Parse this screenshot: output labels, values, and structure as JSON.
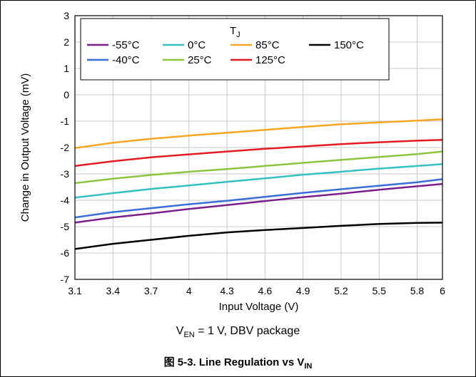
{
  "chart_data": {
    "type": "line",
    "title": "",
    "xlabel": "Input Voltage (V)",
    "ylabel": "Change in Output Voltage (mV)",
    "xlim": [
      3.1,
      6
    ],
    "ylim": [
      -7,
      3
    ],
    "xticks": [
      "3.1",
      "3.4",
      "3.7",
      "4",
      "4.3",
      "4.6",
      "4.9",
      "5.2",
      "5.5",
      "5.8",
      "6"
    ],
    "yticks": [
      "3",
      "2",
      "1",
      "0",
      "-1",
      "-2",
      "-3",
      "-4",
      "-5",
      "-6",
      "-7"
    ],
    "grid": true,
    "legend": {
      "title_main": "T",
      "title_sub": "J",
      "placement": "top-right"
    },
    "x": [
      3.1,
      3.4,
      3.7,
      4.0,
      4.3,
      4.6,
      4.9,
      5.2,
      5.5,
      5.8,
      6.0
    ],
    "series": [
      {
        "name": "-55°C",
        "color": "#7b1f8c",
        "values": [
          -4.85,
          -4.65,
          -4.5,
          -4.33,
          -4.18,
          -4.03,
          -3.88,
          -3.75,
          -3.6,
          -3.47,
          -3.38
        ]
      },
      {
        "name": "-40°C",
        "color": "#3a6fd8",
        "values": [
          -4.65,
          -4.45,
          -4.3,
          -4.15,
          -4.02,
          -3.87,
          -3.72,
          -3.58,
          -3.45,
          -3.32,
          -3.2
        ]
      },
      {
        "name": "0°C",
        "color": "#35c0c4",
        "values": [
          -3.9,
          -3.73,
          -3.57,
          -3.44,
          -3.3,
          -3.17,
          -3.03,
          -2.92,
          -2.8,
          -2.7,
          -2.63
        ]
      },
      {
        "name": "25°C",
        "color": "#8cc63f",
        "values": [
          -3.35,
          -3.18,
          -3.04,
          -2.92,
          -2.82,
          -2.7,
          -2.58,
          -2.47,
          -2.36,
          -2.25,
          -2.15
        ]
      },
      {
        "name": "85°C",
        "color": "#f5a623",
        "values": [
          -2.02,
          -1.82,
          -1.67,
          -1.55,
          -1.44,
          -1.33,
          -1.22,
          -1.12,
          -1.05,
          -0.98,
          -0.93
        ]
      },
      {
        "name": "125°C",
        "color": "#e31b23",
        "values": [
          -2.7,
          -2.52,
          -2.37,
          -2.26,
          -2.15,
          -2.05,
          -1.96,
          -1.87,
          -1.8,
          -1.74,
          -1.71
        ]
      },
      {
        "name": "150°C",
        "color": "#000000",
        "values": [
          -5.85,
          -5.65,
          -5.5,
          -5.35,
          -5.22,
          -5.13,
          -5.05,
          -4.97,
          -4.9,
          -4.86,
          -4.85
        ]
      }
    ]
  },
  "subtitle": {
    "prefix": "V",
    "sub": "EN",
    "rest": " = 1 V, DBV package"
  },
  "caption": {
    "prefix": "图 5-3. Line Regulation vs V",
    "sub": "IN"
  }
}
